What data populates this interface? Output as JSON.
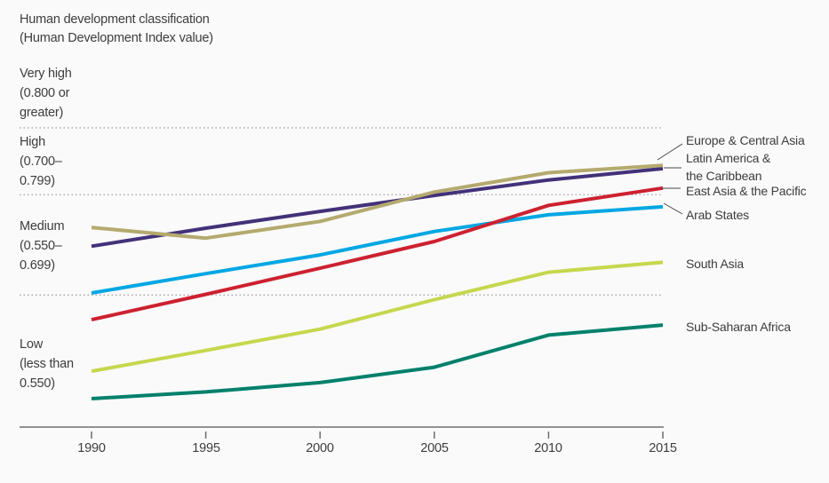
{
  "title": {
    "line1": "Human development classification",
    "line2": "(Human Development Index value)"
  },
  "chart_data": {
    "type": "line",
    "title": "Human development classification (Human Development Index value)",
    "x": [
      1990,
      1995,
      2000,
      2005,
      2010,
      2015
    ],
    "x_tick_labels": [
      "1990",
      "1995",
      "2000",
      "2005",
      "2010",
      "2015"
    ],
    "ylim": [
      0.35,
      0.85
    ],
    "gridlines_at_values": [
      0.8,
      0.7,
      0.55
    ],
    "grid_style": "dotted",
    "legend_position": "right-of-line-ends",
    "bands": [
      {
        "name": "very-high",
        "label_lines": [
          "Very high",
          "(0.800 or",
          "greater)"
        ]
      },
      {
        "name": "high",
        "label_lines": [
          "High",
          "(0.700–",
          "0.799)"
        ]
      },
      {
        "name": "medium",
        "label_lines": [
          "Medium",
          "(0.550–",
          "0.699)"
        ]
      },
      {
        "name": "low",
        "label_lines": [
          "Low",
          "(less than",
          "0.550)"
        ]
      }
    ],
    "series": [
      {
        "name": "Europe & Central Asia",
        "slug": "europe-central-asia",
        "color": "#b4aa6e",
        "values": [
          0.651,
          0.635,
          0.66,
          0.704,
          0.733,
          0.744
        ],
        "label_lines": [
          "Europe & Central Asia"
        ]
      },
      {
        "name": "Latin America & the Caribbean",
        "slug": "latin-america-caribbean",
        "color": "#433179",
        "values": [
          0.623,
          0.65,
          0.675,
          0.699,
          0.722,
          0.739
        ],
        "label_lines": [
          "Latin America &",
          "the Caribbean"
        ]
      },
      {
        "name": "East Asia & the Pacific",
        "slug": "east-asia-pacific",
        "color": "#cd2130",
        "values": [
          0.513,
          0.551,
          0.59,
          0.63,
          0.684,
          0.71
        ],
        "label_lines": [
          "East Asia & the Pacific"
        ]
      },
      {
        "name": "Arab States",
        "slug": "arab-states",
        "color": "#00a7e3",
        "values": [
          0.553,
          0.582,
          0.61,
          0.645,
          0.67,
          0.682
        ],
        "label_lines": [
          "Arab States"
        ]
      },
      {
        "name": "South Asia",
        "slug": "south-asia",
        "color": "#c6d74d",
        "values": [
          0.436,
          0.467,
          0.499,
          0.543,
          0.584,
          0.599
        ],
        "label_lines": [
          "South Asia"
        ]
      },
      {
        "name": "Sub-Saharan Africa",
        "slug": "sub-saharan-africa",
        "color": "#00806a",
        "values": [
          0.395,
          0.405,
          0.419,
          0.442,
          0.49,
          0.505
        ],
        "label_lines": [
          "Sub-Saharan Africa"
        ]
      }
    ],
    "colors": {
      "grid": "#999999",
      "axis": "#6e6e6e",
      "leader_line": "#4a4a4a",
      "text": "#3d3d3d",
      "background": "#fafafa"
    }
  }
}
